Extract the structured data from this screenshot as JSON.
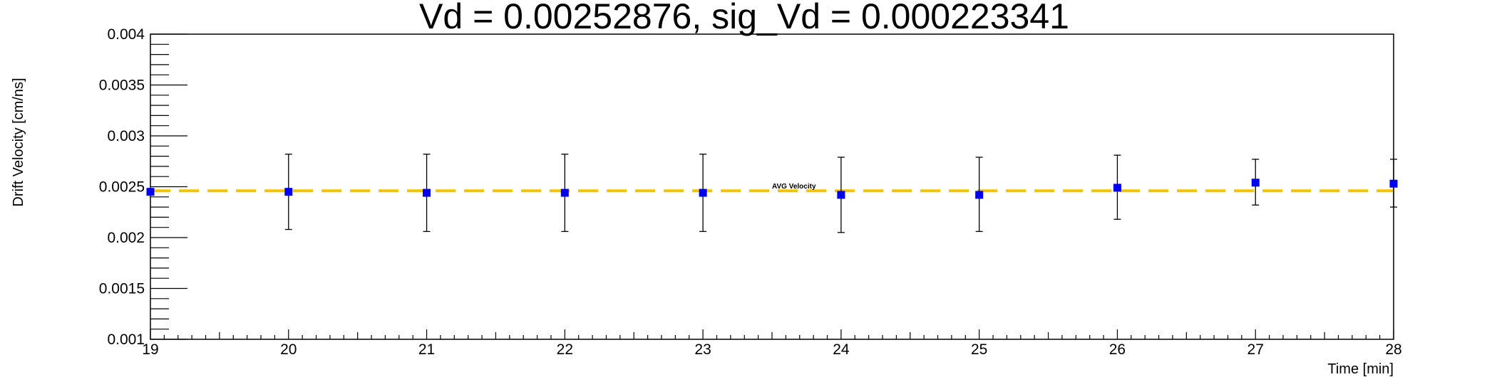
{
  "chart_data": {
    "type": "scatter",
    "title": "Vd = 0.00252876, sig_Vd = 0.000223341",
    "xlabel": "Time [min]",
    "ylabel": "Drift Velocity [cm/ns]",
    "xlim": [
      19,
      28
    ],
    "ylim": [
      0.001,
      0.004
    ],
    "x_ticks": [
      19,
      20,
      21,
      22,
      23,
      24,
      25,
      26,
      27,
      28
    ],
    "x_tick_labels": [
      "19",
      "20",
      "21",
      "22",
      "23",
      "24",
      "25",
      "26",
      "27",
      "28"
    ],
    "y_ticks": [
      0.001,
      0.0015,
      0.002,
      0.0025,
      0.003,
      0.0035,
      0.004
    ],
    "y_tick_labels": [
      "0.001",
      "0.0015",
      "0.002",
      "0.0025",
      "0.003",
      "0.0035",
      "0.004"
    ],
    "grid": false,
    "series": [
      {
        "marker_color": "#0000ee",
        "error_bar_color": "#000000",
        "points": [
          {
            "x": 19,
            "y": 0.00245
          },
          {
            "x": 20,
            "y": 0.00245,
            "err_low": 0.00208,
            "err_high": 0.00282
          },
          {
            "x": 21,
            "y": 0.00244,
            "err_low": 0.00206,
            "err_high": 0.00282
          },
          {
            "x": 22,
            "y": 0.00244,
            "err_low": 0.00206,
            "err_high": 0.00282
          },
          {
            "x": 23,
            "y": 0.00244,
            "err_low": 0.00206,
            "err_high": 0.00282
          },
          {
            "x": 24,
            "y": 0.00242,
            "err_low": 0.00205,
            "err_high": 0.00279
          },
          {
            "x": 25,
            "y": 0.00242,
            "err_low": 0.00206,
            "err_high": 0.00279
          },
          {
            "x": 26,
            "y": 0.00249,
            "err_low": 0.00218,
            "err_high": 0.00281
          },
          {
            "x": 27,
            "y": 0.00254,
            "err_low": 0.00232,
            "err_high": 0.00277
          },
          {
            "x": 28,
            "y": 0.00253,
            "err_low": 0.0023,
            "err_high": 0.00277
          }
        ]
      }
    ],
    "reference_line": {
      "y": 0.00246,
      "label": "AVG Velocity",
      "label_x": 23.5,
      "color": "#f5c400",
      "style": "dashed"
    }
  }
}
